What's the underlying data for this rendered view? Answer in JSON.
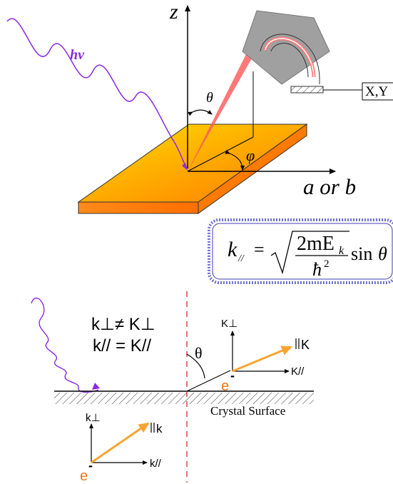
{
  "diagram": {
    "top": {
      "photon_label": "hν",
      "z_axis_label": "z",
      "theta_label": "θ",
      "phi_label": "φ",
      "in_plane_axis_label": "a or b",
      "detector_readout_label": "X,Y"
    },
    "formula": {
      "lhs": "k",
      "lhs_subscript": "//",
      "equals": "=",
      "numerator_prefix": "2mE",
      "numerator_subscript": "k",
      "denominator_base": "ħ",
      "denominator_exp": "2",
      "trailing": "sin",
      "trailing_var": "θ"
    },
    "bottom": {
      "relation_perp": "k⊥≠ K⊥",
      "relation_par": "k// = K//",
      "crystal_surface_label": "Crystal Surface",
      "theta_label": "θ",
      "outside_perp_label": "K⊥",
      "outside_par_label": "K//",
      "outside_vector_label": "K",
      "outside_electron_label": "e",
      "outside_electron_charge": "-",
      "inside_perp_label": "k⊥",
      "inside_par_label": "k//",
      "inside_vector_label": "k",
      "inside_electron_label": "e",
      "inside_electron_charge": "-"
    },
    "colors": {
      "photon": "#8a2be2",
      "beam": "#ff6f6f",
      "electron_vector": "#f7a531",
      "electron_label": "#e8781e",
      "surface_dash": "#e03030",
      "formula_border": "#6f6fd0",
      "analyzer_gray": "#a0a0a0"
    }
  }
}
